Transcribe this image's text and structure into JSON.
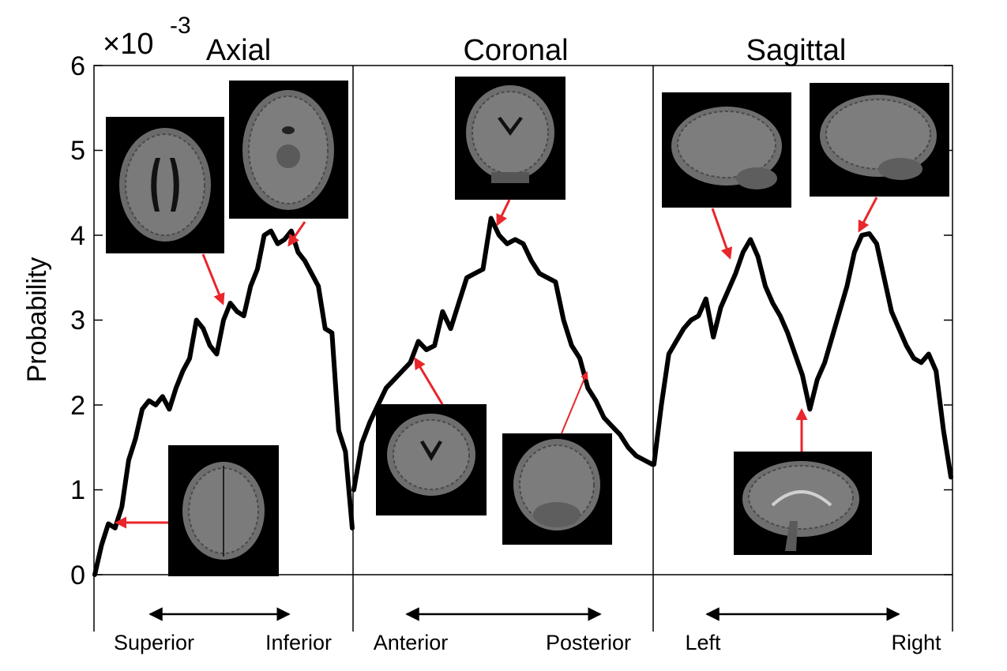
{
  "ylabel": "Probability",
  "scale_multiplier": {
    "base": "×10",
    "exponent": "-3"
  },
  "y_ticks": [
    "0",
    "1",
    "2",
    "3",
    "4",
    "5",
    "6"
  ],
  "colors": {
    "curve": "#000000",
    "arrow": "#e8262b",
    "image_bg": "#000000"
  },
  "panels": [
    {
      "title": "Axial",
      "from": "Superior",
      "to": "Inferior"
    },
    {
      "title": "Coronal",
      "from": "Anterior",
      "to": "Posterior"
    },
    {
      "title": "Sagittal",
      "from": "Left",
      "to": "Right"
    }
  ],
  "inset_images": [
    {
      "panel": "Axial",
      "view": "axial-slice-ventricles"
    },
    {
      "panel": "Axial",
      "view": "axial-slice-midbrain"
    },
    {
      "panel": "Axial",
      "view": "axial-slice-superior"
    },
    {
      "panel": "Coronal",
      "view": "coronal-slice-mid"
    },
    {
      "panel": "Coronal",
      "view": "coronal-slice-anterior"
    },
    {
      "panel": "Coronal",
      "view": "coronal-slice-posterior"
    },
    {
      "panel": "Sagittal",
      "view": "sagittal-slice-left"
    },
    {
      "panel": "Sagittal",
      "view": "sagittal-slice-right"
    },
    {
      "panel": "Sagittal",
      "view": "sagittal-slice-midline"
    }
  ],
  "chart_data": {
    "type": "line",
    "ylabel": "Probability",
    "ylim": [
      0,
      6
    ],
    "y_scale": "×10^-3",
    "grid": false,
    "series": [
      {
        "name": "Axial",
        "values": [
          0.0,
          0.35,
          0.6,
          0.55,
          0.8,
          1.35,
          1.6,
          1.95,
          2.05,
          2.0,
          2.1,
          1.95,
          2.2,
          2.4,
          2.55,
          3.0,
          2.9,
          2.7,
          2.6,
          3.0,
          3.2,
          3.1,
          3.05,
          3.4,
          3.6,
          4.0,
          4.05,
          3.9,
          3.95,
          4.05,
          3.8,
          3.7,
          3.55,
          3.4,
          2.9,
          2.85,
          1.7,
          1.45,
          0.55
        ]
      },
      {
        "name": "Coronal",
        "values": [
          1.0,
          1.55,
          1.8,
          2.0,
          2.2,
          2.3,
          2.4,
          2.5,
          2.75,
          2.65,
          2.7,
          3.1,
          2.9,
          3.2,
          3.5,
          3.55,
          3.6,
          4.2,
          4.0,
          3.9,
          3.95,
          3.9,
          3.7,
          3.55,
          3.5,
          3.45,
          3.0,
          2.7,
          2.55,
          2.2,
          2.05,
          1.85,
          1.75,
          1.65,
          1.5,
          1.4,
          1.35,
          1.3
        ]
      },
      {
        "name": "Sagittal",
        "values": [
          1.3,
          2.0,
          2.6,
          2.75,
          2.9,
          3.0,
          3.05,
          3.25,
          2.8,
          3.15,
          3.35,
          3.55,
          3.8,
          3.95,
          3.75,
          3.4,
          3.2,
          3.05,
          2.85,
          2.6,
          2.35,
          1.95,
          2.3,
          2.5,
          2.8,
          3.1,
          3.4,
          3.8,
          4.0,
          4.02,
          3.9,
          3.5,
          3.1,
          2.9,
          2.7,
          2.55,
          2.5,
          2.6,
          2.4,
          1.7,
          1.15
        ]
      }
    ]
  }
}
